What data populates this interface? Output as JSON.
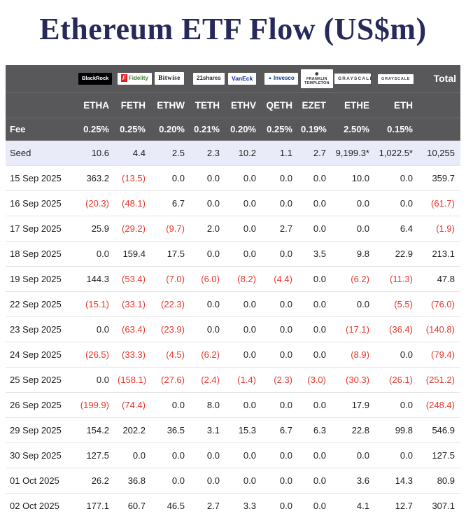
{
  "page": {
    "title": "Ethereum ETF Flow (US$m)"
  },
  "colors": {
    "header_bg": "#58585a",
    "seed_row_bg": "#e9ecf8",
    "negative": "#e8362a",
    "title": "#26295a"
  },
  "table": {
    "fee_label": "Fee",
    "total_label": "Total",
    "providers": [
      {
        "label": "BlackRock",
        "style": "blackrock"
      },
      {
        "label": "Fidelity",
        "style": "fidelity"
      },
      {
        "label": "Bitwise",
        "style": "bitwise"
      },
      {
        "label": "21shares",
        "style": "shares21"
      },
      {
        "label": "VanEck",
        "style": "vaneck"
      },
      {
        "label": "Invesco",
        "style": "invesco"
      },
      {
        "label": "Franklin Templeton",
        "style": "franklin"
      },
      {
        "label": "Grayscale",
        "style": "grayscale"
      },
      {
        "label": "Grayscale",
        "style": "grayscale_sm"
      }
    ],
    "tickers": [
      "ETHA",
      "FETH",
      "ETHW",
      "TETH",
      "ETHV",
      "QETH",
      "EZET",
      "ETHE",
      "ETH"
    ],
    "fees": [
      "0.25%",
      "0.25%",
      "0.20%",
      "0.21%",
      "0.20%",
      "0.25%",
      "0.19%",
      "2.50%",
      "0.15%"
    ],
    "chart_data": {
      "type": "table",
      "title": "Ethereum ETF Flow (US$m)",
      "columns": [
        "",
        "ETHA",
        "FETH",
        "ETHW",
        "TETH",
        "ETHV",
        "QETH",
        "EZET",
        "ETHE",
        "ETH",
        "Total"
      ],
      "rows": [
        {
          "label": "Seed",
          "seed": true,
          "values": [
            "10.6",
            "4.4",
            "2.5",
            "2.3",
            "10.2",
            "1.1",
            "2.7",
            "9,199.3*",
            "1,022.5*"
          ],
          "total": "10,255"
        },
        {
          "label": "15 Sep 2025",
          "values": [
            "363.2",
            "(13.5)",
            "0.0",
            "0.0",
            "0.0",
            "0.0",
            "0.0",
            "10.0",
            "0.0"
          ],
          "total": "359.7"
        },
        {
          "label": "16 Sep 2025",
          "values": [
            "(20.3)",
            "(48.1)",
            "6.7",
            "0.0",
            "0.0",
            "0.0",
            "0.0",
            "0.0",
            "0.0"
          ],
          "total": "(61.7)"
        },
        {
          "label": "17 Sep 2025",
          "values": [
            "25.9",
            "(29.2)",
            "(9.7)",
            "2.0",
            "0.0",
            "2.7",
            "0.0",
            "0.0",
            "6.4"
          ],
          "total": "(1.9)"
        },
        {
          "label": "18 Sep 2025",
          "values": [
            "0.0",
            "159.4",
            "17.5",
            "0.0",
            "0.0",
            "0.0",
            "3.5",
            "9.8",
            "22.9"
          ],
          "total": "213.1"
        },
        {
          "label": "19 Sep 2025",
          "values": [
            "144.3",
            "(53.4)",
            "(7.0)",
            "(6.0)",
            "(8.2)",
            "(4.4)",
            "0.0",
            "(6.2)",
            "(11.3)"
          ],
          "total": "47.8"
        },
        {
          "label": "22 Sep 2025",
          "values": [
            "(15.1)",
            "(33.1)",
            "(22.3)",
            "0.0",
            "0.0",
            "0.0",
            "0.0",
            "0.0",
            "(5.5)"
          ],
          "total": "(76.0)"
        },
        {
          "label": "23 Sep 2025",
          "values": [
            "0.0",
            "(63.4)",
            "(23.9)",
            "0.0",
            "0.0",
            "0.0",
            "0.0",
            "(17.1)",
            "(36.4)"
          ],
          "total": "(140.8)"
        },
        {
          "label": "24 Sep 2025",
          "values": [
            "(26.5)",
            "(33.3)",
            "(4.5)",
            "(6.2)",
            "0.0",
            "0.0",
            "0.0",
            "(8.9)",
            "0.0"
          ],
          "total": "(79.4)"
        },
        {
          "label": "25 Sep 2025",
          "values": [
            "0.0",
            "(158.1)",
            "(27.6)",
            "(2.4)",
            "(1.4)",
            "(2.3)",
            "(3.0)",
            "(30.3)",
            "(26.1)"
          ],
          "total": "(251.2)"
        },
        {
          "label": "26 Sep 2025",
          "values": [
            "(199.9)",
            "(74.4)",
            "0.0",
            "8.0",
            "0.0",
            "0.0",
            "0.0",
            "17.9",
            "0.0"
          ],
          "total": "(248.4)"
        },
        {
          "label": "29 Sep 2025",
          "values": [
            "154.2",
            "202.2",
            "36.5",
            "3.1",
            "15.3",
            "6.7",
            "6.3",
            "22.8",
            "99.8"
          ],
          "total": "546.9"
        },
        {
          "label": "30 Sep 2025",
          "values": [
            "127.5",
            "0.0",
            "0.0",
            "0.0",
            "0.0",
            "0.0",
            "0.0",
            "0.0",
            "0.0"
          ],
          "total": "127.5"
        },
        {
          "label": "01 Oct 2025",
          "values": [
            "26.2",
            "36.8",
            "0.0",
            "0.0",
            "0.0",
            "0.0",
            "0.0",
            "3.6",
            "14.3"
          ],
          "total": "80.9"
        },
        {
          "label": "02 Oct 2025",
          "values": [
            "177.1",
            "60.7",
            "46.5",
            "2.7",
            "3.3",
            "0.0",
            "0.0",
            "4.1",
            "12.7"
          ],
          "total": "307.1"
        }
      ]
    }
  }
}
